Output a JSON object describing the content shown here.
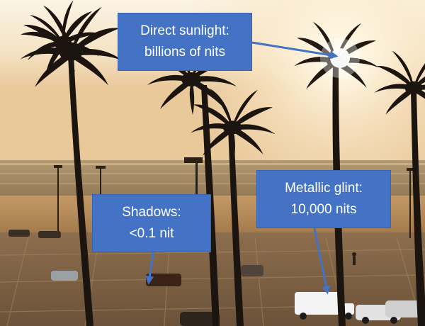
{
  "callouts": {
    "sunlight": {
      "line1": "Direct sunlight:",
      "line2": "billions of nits"
    },
    "shadows": {
      "line1": "Shadows:",
      "line2": "<0.1 nit"
    },
    "glint": {
      "line1": "Metallic glint:",
      "line2": "10,000 nits"
    }
  },
  "colors": {
    "callout_fill": "#4472C4",
    "callout_text": "#FFFFFF",
    "arrow": "#4472C4"
  }
}
